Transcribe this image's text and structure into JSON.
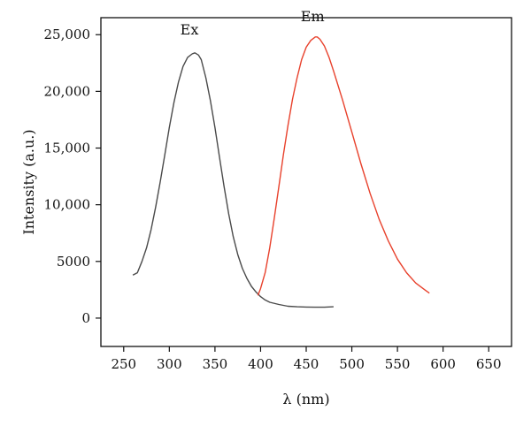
{
  "chart_data": {
    "type": "line",
    "title": "",
    "xlabel": "λ (nm)",
    "ylabel": "Intensity (a.u.)",
    "xlim": [
      225,
      675
    ],
    "ylim": [
      -2500,
      26500
    ],
    "x_ticks": [
      250,
      300,
      350,
      400,
      450,
      500,
      550,
      600,
      650
    ],
    "y_ticks": [
      0,
      5000,
      10000,
      15000,
      20000,
      25000
    ],
    "x_tick_labels": [
      "250",
      "300",
      "350",
      "400",
      "450",
      "500",
      "550",
      "600",
      "650"
    ],
    "y_tick_labels": [
      "0",
      "5000",
      "10,000",
      "15,000",
      "20,000",
      "25,000"
    ],
    "grid": false,
    "series": [
      {
        "name": "Ex",
        "color": "#4a4a4a",
        "label_at": [
          322,
          25000
        ],
        "x": [
          260,
          265,
          270,
          275,
          280,
          285,
          290,
          295,
          300,
          305,
          310,
          315,
          320,
          325,
          328,
          332,
          335,
          340,
          345,
          350,
          355,
          360,
          365,
          370,
          375,
          380,
          385,
          390,
          395,
          400,
          405,
          410,
          420,
          430,
          440,
          450,
          460,
          470,
          480
        ],
        "y": [
          3800,
          4000,
          5000,
          6200,
          7800,
          9800,
          12000,
          14400,
          16800,
          19000,
          20800,
          22200,
          23000,
          23300,
          23400,
          23200,
          22800,
          21200,
          19200,
          16800,
          14200,
          11600,
          9200,
          7200,
          5600,
          4400,
          3500,
          2800,
          2300,
          1900,
          1600,
          1400,
          1200,
          1050,
          1000,
          980,
          960,
          960,
          1000
        ]
      },
      {
        "name": "Em",
        "color": "#e8412c",
        "label_at": [
          457,
          26200
        ],
        "x": [
          397,
          400,
          405,
          410,
          415,
          420,
          425,
          430,
          435,
          440,
          445,
          450,
          455,
          460,
          462,
          465,
          470,
          475,
          480,
          490,
          500,
          510,
          520,
          530,
          540,
          550,
          560,
          570,
          580,
          585
        ],
        "y": [
          2000,
          2600,
          4000,
          6200,
          8800,
          11600,
          14400,
          17000,
          19300,
          21200,
          22800,
          23900,
          24500,
          24800,
          24800,
          24600,
          24000,
          23000,
          21800,
          19200,
          16400,
          13600,
          11000,
          8700,
          6800,
          5200,
          4000,
          3100,
          2500,
          2200
        ]
      }
    ]
  }
}
